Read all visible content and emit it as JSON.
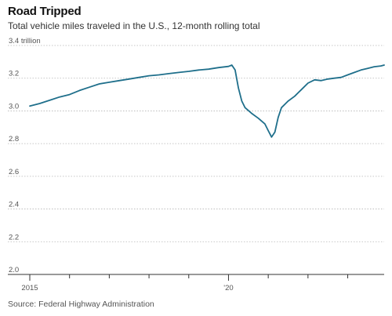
{
  "header": {
    "title": "Road Tripped",
    "subtitle": "Total vehicle miles traveled in the U.S., 12-month rolling total"
  },
  "footer": {
    "source": "Source: Federal Highway Administration"
  },
  "colors": {
    "line": "#1f6f8b",
    "grid": "#b5b5b5",
    "axis": "#333333",
    "text": "#555555"
  },
  "chart_data": {
    "type": "line",
    "title": "Road Tripped",
    "subtitle": "Total vehicle miles traveled in the U.S., 12-month rolling total",
    "ylabel": "",
    "xlabel": "",
    "ylim": [
      2.0,
      3.4
    ],
    "xlim": [
      "2015-01",
      "2023-12"
    ],
    "y_ticks": [
      2.0,
      2.2,
      2.4,
      2.6,
      2.8,
      3.0,
      3.2,
      3.4
    ],
    "y_tick_labels": [
      "2.0",
      "2.2",
      "2.4",
      "2.6",
      "2.8",
      "3.0",
      "3.2",
      "3.4 trillion"
    ],
    "x_tick_labels": [
      {
        "x": "2015-01",
        "label": "2015"
      },
      {
        "x": "2020-01",
        "label": "'20"
      }
    ],
    "x_minor_ticks": [
      "2016-01",
      "2017-01",
      "2018-01",
      "2019-01",
      "2021-01",
      "2022-01",
      "2023-01"
    ],
    "grid": true,
    "grid_style": "dotted horizontal",
    "legend": "none",
    "source": "Source: Federal Highway Administration",
    "series": [
      {
        "points": [
          [
            "2015-01",
            3.03
          ],
          [
            "2015-04",
            3.045
          ],
          [
            "2015-07",
            3.065
          ],
          [
            "2015-10",
            3.085
          ],
          [
            "2016-01",
            3.1
          ],
          [
            "2016-04",
            3.125
          ],
          [
            "2016-07",
            3.145
          ],
          [
            "2016-10",
            3.165
          ],
          [
            "2017-01",
            3.175
          ],
          [
            "2017-04",
            3.185
          ],
          [
            "2017-07",
            3.195
          ],
          [
            "2017-10",
            3.205
          ],
          [
            "2018-01",
            3.215
          ],
          [
            "2018-04",
            3.22
          ],
          [
            "2018-07",
            3.228
          ],
          [
            "2018-10",
            3.235
          ],
          [
            "2019-01",
            3.242
          ],
          [
            "2019-04",
            3.25
          ],
          [
            "2019-07",
            3.255
          ],
          [
            "2019-10",
            3.265
          ],
          [
            "2020-01",
            3.272
          ],
          [
            "2020-02",
            3.28
          ],
          [
            "2020-03",
            3.25
          ],
          [
            "2020-04",
            3.14
          ],
          [
            "2020-05",
            3.06
          ],
          [
            "2020-06",
            3.02
          ],
          [
            "2020-08",
            2.985
          ],
          [
            "2020-10",
            2.955
          ],
          [
            "2020-12",
            2.92
          ],
          [
            "2021-01",
            2.88
          ],
          [
            "2021-02",
            2.84
          ],
          [
            "2021-03",
            2.87
          ],
          [
            "2021-04",
            2.96
          ],
          [
            "2021-05",
            3.02
          ],
          [
            "2021-07",
            3.06
          ],
          [
            "2021-09",
            3.09
          ],
          [
            "2021-11",
            3.13
          ],
          [
            "2022-01",
            3.17
          ],
          [
            "2022-03",
            3.19
          ],
          [
            "2022-05",
            3.185
          ],
          [
            "2022-07",
            3.195
          ],
          [
            "2022-09",
            3.2
          ],
          [
            "2022-11",
            3.205
          ],
          [
            "2023-01",
            3.22
          ],
          [
            "2023-03",
            3.235
          ],
          [
            "2023-05",
            3.25
          ],
          [
            "2023-07",
            3.26
          ],
          [
            "2023-09",
            3.27
          ],
          [
            "2023-11",
            3.275
          ],
          [
            "2023-12",
            3.28
          ]
        ]
      }
    ]
  }
}
